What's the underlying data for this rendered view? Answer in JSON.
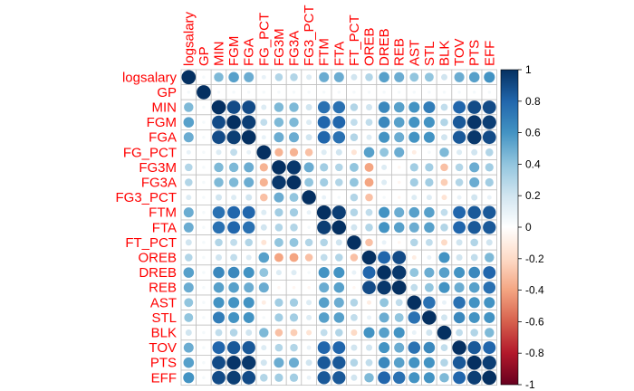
{
  "chart_data": {
    "type": "heatmap",
    "variables": [
      "logsalary",
      "GP",
      "MIN",
      "FGM",
      "FGA",
      "FG_PCT",
      "FG3M",
      "FG3A",
      "FG3_PCT",
      "FTM",
      "FTA",
      "FT_PCT",
      "OREB",
      "DREB",
      "REB",
      "AST",
      "STL",
      "BLK",
      "TOV",
      "PTS",
      "EFF"
    ],
    "matrix": [
      [
        1.0,
        0.05,
        0.45,
        0.55,
        0.5,
        0.1,
        0.3,
        0.3,
        0.15,
        0.5,
        0.5,
        0.2,
        0.3,
        0.55,
        0.5,
        0.4,
        0.4,
        0.2,
        0.5,
        0.55,
        0.6
      ],
      [
        0.05,
        1.0,
        0.05,
        0.05,
        0.05,
        0.05,
        0.05,
        0.05,
        0.05,
        0.05,
        0.05,
        0.05,
        0.05,
        0.05,
        0.05,
        0.05,
        0.05,
        0.05,
        0.05,
        0.05,
        0.05
      ],
      [
        0.45,
        0.05,
        1.0,
        0.9,
        0.9,
        0.15,
        0.45,
        0.45,
        0.2,
        0.75,
        0.75,
        0.3,
        0.2,
        0.65,
        0.55,
        0.6,
        0.7,
        0.25,
        0.8,
        0.9,
        0.9
      ],
      [
        0.55,
        0.05,
        0.9,
        1.0,
        0.95,
        0.25,
        0.45,
        0.45,
        0.15,
        0.8,
        0.8,
        0.25,
        0.25,
        0.65,
        0.55,
        0.6,
        0.6,
        0.3,
        0.85,
        0.98,
        0.95
      ],
      [
        0.5,
        0.05,
        0.9,
        0.95,
        1.0,
        0.1,
        0.5,
        0.5,
        0.2,
        0.8,
        0.75,
        0.3,
        0.15,
        0.6,
        0.5,
        0.6,
        0.6,
        0.2,
        0.85,
        0.97,
        0.9
      ],
      [
        0.1,
        0.05,
        0.15,
        0.25,
        0.1,
        1.0,
        -0.35,
        -0.35,
        -0.3,
        0.15,
        0.2,
        -0.15,
        0.55,
        0.4,
        0.5,
        -0.1,
        0.05,
        0.45,
        0.15,
        0.2,
        0.3
      ],
      [
        0.3,
        0.05,
        0.45,
        0.45,
        0.5,
        -0.35,
        1.0,
        0.97,
        0.5,
        0.35,
        0.3,
        0.4,
        -0.4,
        0.15,
        -0.05,
        0.35,
        0.35,
        -0.3,
        0.3,
        0.5,
        0.35
      ],
      [
        0.3,
        0.05,
        0.45,
        0.45,
        0.5,
        -0.35,
        0.97,
        1.0,
        0.4,
        0.35,
        0.3,
        0.4,
        -0.4,
        0.15,
        -0.05,
        0.35,
        0.35,
        -0.25,
        0.3,
        0.5,
        0.35
      ],
      [
        0.15,
        0.05,
        0.2,
        0.15,
        0.2,
        -0.3,
        0.5,
        0.4,
        1.0,
        0.1,
        0.05,
        0.3,
        -0.3,
        0.05,
        -0.05,
        0.15,
        0.15,
        -0.15,
        0.1,
        0.2,
        0.1
      ],
      [
        0.5,
        0.05,
        0.75,
        0.8,
        0.8,
        0.15,
        0.35,
        0.35,
        0.1,
        1.0,
        0.95,
        0.3,
        0.25,
        0.6,
        0.5,
        0.55,
        0.55,
        0.25,
        0.8,
        0.85,
        0.85
      ],
      [
        0.5,
        0.05,
        0.75,
        0.8,
        0.75,
        0.2,
        0.3,
        0.3,
        0.05,
        0.95,
        1.0,
        0.2,
        0.3,
        0.6,
        0.55,
        0.5,
        0.55,
        0.3,
        0.8,
        0.85,
        0.85
      ],
      [
        0.2,
        0.05,
        0.3,
        0.25,
        0.3,
        -0.15,
        0.4,
        0.4,
        0.3,
        0.3,
        0.2,
        1.0,
        -0.3,
        0.1,
        -0.05,
        0.3,
        0.25,
        -0.2,
        0.2,
        0.3,
        0.2
      ],
      [
        0.3,
        0.05,
        0.2,
        0.25,
        0.15,
        0.55,
        -0.4,
        -0.4,
        -0.3,
        0.25,
        0.3,
        -0.3,
        1.0,
        0.8,
        0.9,
        -0.1,
        0.1,
        0.6,
        0.2,
        0.25,
        0.45
      ],
      [
        0.55,
        0.05,
        0.65,
        0.65,
        0.6,
        0.4,
        0.15,
        0.15,
        0.05,
        0.6,
        0.6,
        0.1,
        0.8,
        1.0,
        0.97,
        0.4,
        0.5,
        0.55,
        0.6,
        0.65,
        0.8
      ],
      [
        0.5,
        0.05,
        0.55,
        0.55,
        0.5,
        0.5,
        -0.05,
        -0.05,
        -0.05,
        0.5,
        0.55,
        -0.05,
        0.9,
        0.97,
        1.0,
        0.25,
        0.4,
        0.6,
        0.5,
        0.55,
        0.75
      ],
      [
        0.4,
        0.05,
        0.6,
        0.6,
        0.6,
        -0.1,
        0.35,
        0.35,
        0.15,
        0.55,
        0.5,
        0.3,
        -0.1,
        0.4,
        0.25,
        1.0,
        0.75,
        0.1,
        0.75,
        0.6,
        0.6
      ],
      [
        0.4,
        0.05,
        0.7,
        0.6,
        0.6,
        0.05,
        0.35,
        0.35,
        0.15,
        0.55,
        0.55,
        0.25,
        0.1,
        0.5,
        0.4,
        0.75,
        1.0,
        0.2,
        0.65,
        0.6,
        0.6
      ],
      [
        0.2,
        0.05,
        0.25,
        0.3,
        0.2,
        0.45,
        -0.3,
        -0.25,
        -0.15,
        0.25,
        0.3,
        -0.2,
        0.6,
        0.55,
        0.6,
        0.1,
        0.2,
        1.0,
        0.25,
        0.3,
        0.45
      ],
      [
        0.5,
        0.05,
        0.8,
        0.85,
        0.85,
        0.15,
        0.3,
        0.3,
        0.1,
        0.8,
        0.8,
        0.2,
        0.2,
        0.6,
        0.5,
        0.75,
        0.65,
        0.25,
        1.0,
        0.85,
        0.8
      ],
      [
        0.55,
        0.05,
        0.9,
        0.98,
        0.97,
        0.2,
        0.5,
        0.5,
        0.2,
        0.85,
        0.85,
        0.3,
        0.25,
        0.65,
        0.55,
        0.6,
        0.6,
        0.3,
        0.85,
        1.0,
        0.95
      ],
      [
        0.6,
        0.05,
        0.9,
        0.95,
        0.9,
        0.3,
        0.35,
        0.35,
        0.1,
        0.85,
        0.85,
        0.2,
        0.45,
        0.8,
        0.75,
        0.6,
        0.6,
        0.45,
        0.8,
        0.95,
        1.0
      ]
    ],
    "colorbar": {
      "range": [
        -1,
        1
      ],
      "ticks": [
        "1",
        "0.8",
        "0.6",
        "0.4",
        "0.2",
        "0",
        "-0.2",
        "-0.4",
        "-0.6",
        "-0.8",
        "-1"
      ]
    },
    "colors": {
      "label": "#ff0000",
      "grid": "#c0c0c0",
      "positive_strong": "#053061",
      "positive_mid": "#4393c3",
      "positive_light": "#d1e5f0",
      "neutral": "#ffffff",
      "negative_light": "#fddbc7",
      "negative_mid": "#d6604d",
      "negative_strong": "#67001f"
    }
  }
}
